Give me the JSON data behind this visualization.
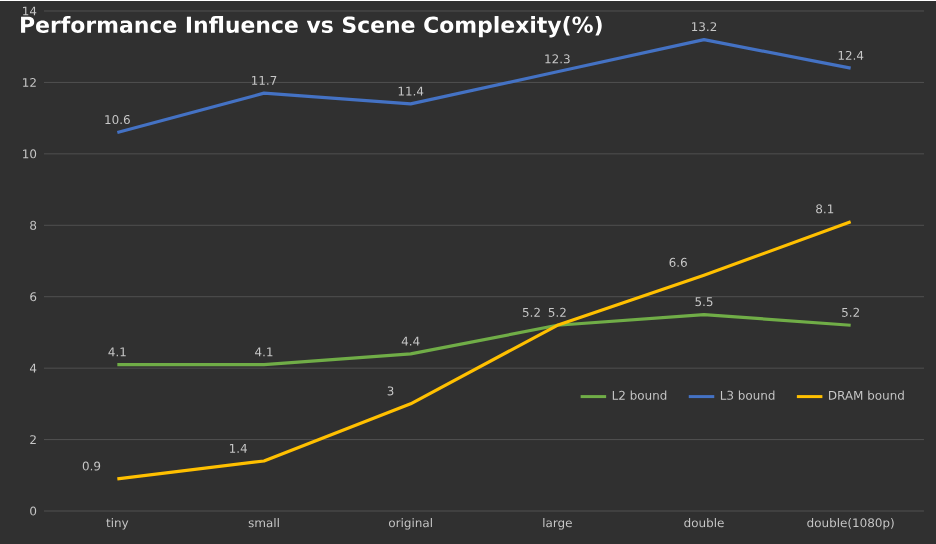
{
  "chart_data": {
    "type": "line",
    "title": "Performance  Influence vs Scene Complexity(%)",
    "categories": [
      "tiny",
      "small",
      "original",
      "large",
      "double",
      "double(1080p)"
    ],
    "series": [
      {
        "name": "L2 bound",
        "color": "#70ad47",
        "values": [
          4.1,
          4.1,
          4.4,
          5.2,
          5.5,
          5.2
        ]
      },
      {
        "name": "L3 bound",
        "color": "#4472c4",
        "values": [
          10.6,
          11.7,
          11.4,
          12.3,
          13.2,
          12.4
        ]
      },
      {
        "name": "DRAM bound",
        "color": "#ffc000",
        "values": [
          0.9,
          1.4,
          3,
          5.2,
          6.6,
          8.1
        ]
      }
    ],
    "ylim": [
      0,
      14
    ],
    "yticks": [
      0,
      2,
      4,
      6,
      8,
      10,
      12,
      14
    ],
    "grid": "y",
    "legend": "bottom right",
    "data_labels": true,
    "marker": "none",
    "line_style": "solid"
  }
}
